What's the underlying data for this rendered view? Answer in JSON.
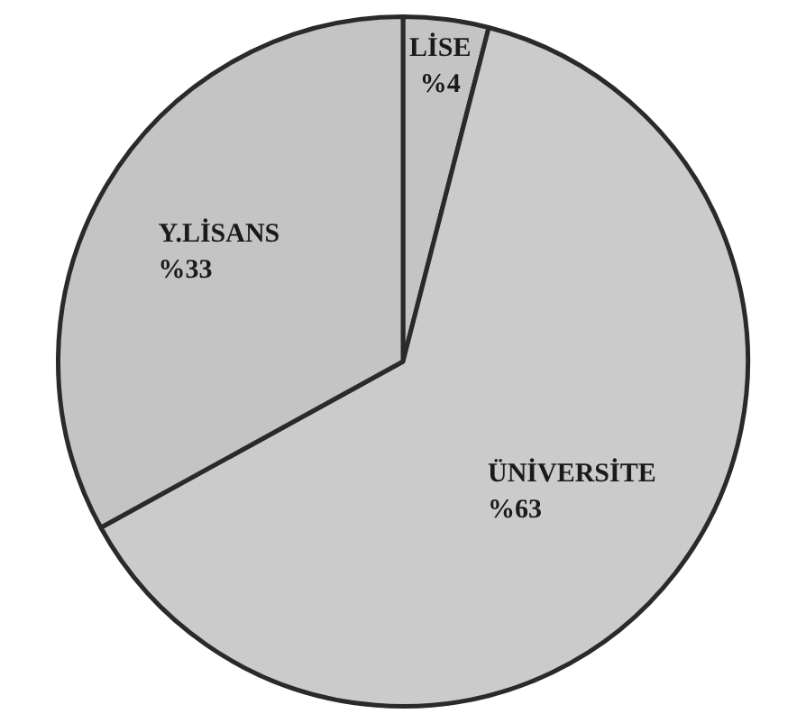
{
  "chart_data": {
    "type": "pie",
    "categories": [
      "LİSE",
      "ÜNİVERSİTE",
      "Y.LİSANS"
    ],
    "values": [
      4,
      63,
      33
    ],
    "colors": [
      "#c4c4c4",
      "#cbcbcb",
      "#c4c4c4"
    ],
    "value_labels": [
      "%4",
      "%63",
      "%33"
    ]
  }
}
